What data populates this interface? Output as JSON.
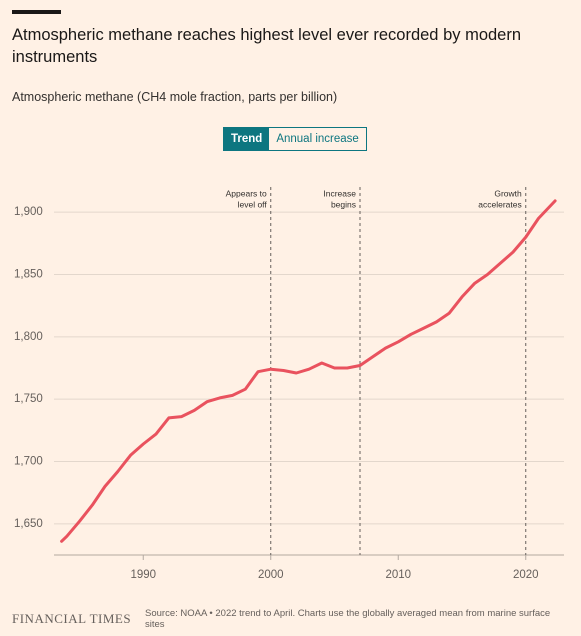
{
  "chart_data": {
    "type": "line",
    "title": "Atmospheric methane reaches highest level ever recorded by modern instruments",
    "subtitle": "Atmospheric methane (CH4 mole fraction, parts per billion)",
    "toggle": [
      "Trend",
      "Annual increase"
    ],
    "x": [
      1983.6,
      1984,
      1985,
      1986,
      1987,
      1988,
      1989,
      1990,
      1991,
      1992,
      1993,
      1994,
      1995,
      1996,
      1997,
      1998,
      1999,
      2000,
      2001,
      2002,
      2003,
      2004,
      2005,
      2006,
      2007,
      2008,
      2009,
      2010,
      2011,
      2012,
      2013,
      2014,
      2015,
      2016,
      2017,
      2018,
      2019,
      2020,
      2021,
      2022.3
    ],
    "series": [
      {
        "name": "Trend",
        "color": "#e9525e",
        "values": [
          1636,
          1640,
          1652,
          1665,
          1680,
          1692,
          1705,
          1714,
          1722,
          1735,
          1736,
          1741,
          1748,
          1751,
          1753,
          1758,
          1772,
          1774,
          1773,
          1771,
          1774,
          1779,
          1775,
          1775,
          1777,
          1784,
          1791,
          1796,
          1802,
          1807,
          1812,
          1819,
          1832,
          1843,
          1850,
          1859,
          1868,
          1880,
          1895,
          1909
        ]
      }
    ],
    "xlim": [
      1983,
      2023
    ],
    "xticks": [
      1990,
      2000,
      2010,
      2020
    ],
    "ylim": [
      1625,
      1925
    ],
    "yticks": [
      {
        "value": 1650,
        "label": "1,650"
      },
      {
        "value": 1700,
        "label": "1,700"
      },
      {
        "value": 1750,
        "label": "1,750"
      },
      {
        "value": 1800,
        "label": "1,800"
      },
      {
        "value": 1850,
        "label": "1,850"
      },
      {
        "value": 1900,
        "label": "1,900"
      }
    ],
    "grid": true,
    "annotations": [
      {
        "x": 2000,
        "lines": [
          "Appears to",
          "level off"
        ]
      },
      {
        "x": 2007,
        "lines": [
          "Increase",
          "begins"
        ]
      },
      {
        "x": 2020,
        "lines": [
          "Growth",
          "accelerates"
        ]
      }
    ],
    "brand": "FINANCIAL TIMES",
    "source": "Source: NOAA • 2022 trend to April. Charts use the globally averaged mean from marine surface sites"
  }
}
